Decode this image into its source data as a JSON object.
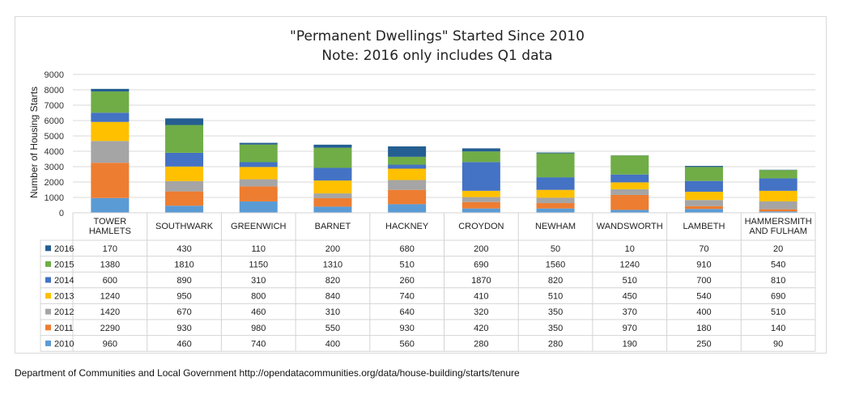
{
  "chart_data": {
    "type": "bar",
    "stacked": true,
    "title": "\"Permanent Dwellings\" Started Since 2010",
    "subtitle": "Note: 2016 only includes Q1 data",
    "ylabel": "Number of Housing Starts",
    "xlabel": "",
    "ylim": [
      0,
      9000
    ],
    "yticks": [
      0,
      1000,
      2000,
      3000,
      4000,
      5000,
      6000,
      7000,
      8000,
      9000
    ],
    "grid": true,
    "legend_placement": "data-table-left",
    "categories": [
      [
        "TOWER",
        "HAMLETS"
      ],
      [
        "SOUTHWARK"
      ],
      [
        "GREENWICH"
      ],
      [
        "BARNET"
      ],
      [
        "HACKNEY"
      ],
      [
        "CROYDON"
      ],
      [
        "NEWHAM"
      ],
      [
        "WANDSWORTH"
      ],
      [
        "LAMBETH"
      ],
      [
        "HAMMERSMITH",
        "AND FULHAM"
      ]
    ],
    "series": [
      {
        "name": "2010",
        "color": "#5b9bd5",
        "values": [
          960,
          460,
          740,
          400,
          560,
          280,
          280,
          190,
          250,
          90
        ]
      },
      {
        "name": "2011",
        "color": "#ed7d31",
        "values": [
          2290,
          930,
          980,
          550,
          930,
          420,
          350,
          970,
          180,
          140
        ]
      },
      {
        "name": "2012",
        "color": "#a5a5a5",
        "values": [
          1420,
          670,
          460,
          310,
          640,
          320,
          350,
          370,
          400,
          510
        ]
      },
      {
        "name": "2013",
        "color": "#ffc000",
        "values": [
          1240,
          950,
          800,
          840,
          740,
          410,
          510,
          450,
          540,
          690
        ]
      },
      {
        "name": "2014",
        "color": "#4472c4",
        "values": [
          600,
          890,
          310,
          820,
          260,
          1870,
          820,
          510,
          700,
          810
        ]
      },
      {
        "name": "2015",
        "color": "#70ad47",
        "values": [
          1380,
          1810,
          1150,
          1310,
          510,
          690,
          1560,
          1240,
          910,
          540
        ]
      },
      {
        "name": "2016",
        "color": "#255e91",
        "values": [
          170,
          430,
          110,
          200,
          680,
          200,
          50,
          10,
          70,
          20
        ]
      }
    ],
    "table_row_order": [
      "2016",
      "2015",
      "2014",
      "2013",
      "2012",
      "2011",
      "2010"
    ]
  },
  "source_note": "Department of Communities and Local Government http://opendatacommunities.org/data/house-building/starts/tenure"
}
